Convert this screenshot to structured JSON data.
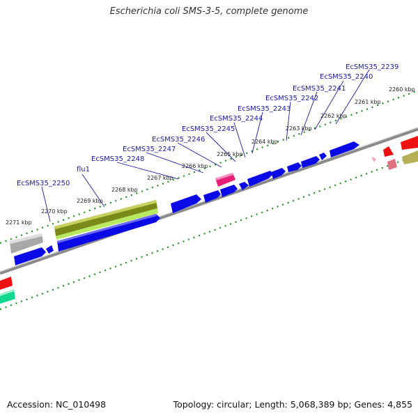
{
  "title": "Escherichia coli SMS-3-5, complete genome",
  "footer": {
    "accession": "Accession: NC_010498",
    "summary": "Topology: circular; Length: 5,068,389 bp; Genes: 4,855"
  },
  "ticks": [
    "2260 kbp",
    "2261 kbp",
    "2262 kbp",
    "2263 kbp",
    "2264 kbp",
    "2265 kbp",
    "2266 kbp",
    "2267 kbp",
    "2268 kbp",
    "2269 kbp",
    "2270 kbp",
    "2271 kbp"
  ],
  "genes": [
    "EcSMS35_2239",
    "EcSMS35_2240",
    "EcSMS35_2241",
    "EcSMS35_2242",
    "EcSMS35_2243",
    "EcSMS35_2244",
    "EcSMS35_2245",
    "EcSMS35_2246",
    "EcSMS35_2247",
    "EcSMS35_2248",
    "flu1",
    "EcSMS35_2250"
  ],
  "colors": {
    "cds": "#0a0ae6",
    "olive": "#8a9a20",
    "lime": "#b8e860",
    "pink": "#e8207a",
    "red": "#ee1111",
    "gray": "#b0b0b0",
    "teal": "#10d890",
    "tick": "#228b22",
    "label": "#1a1aa0"
  }
}
